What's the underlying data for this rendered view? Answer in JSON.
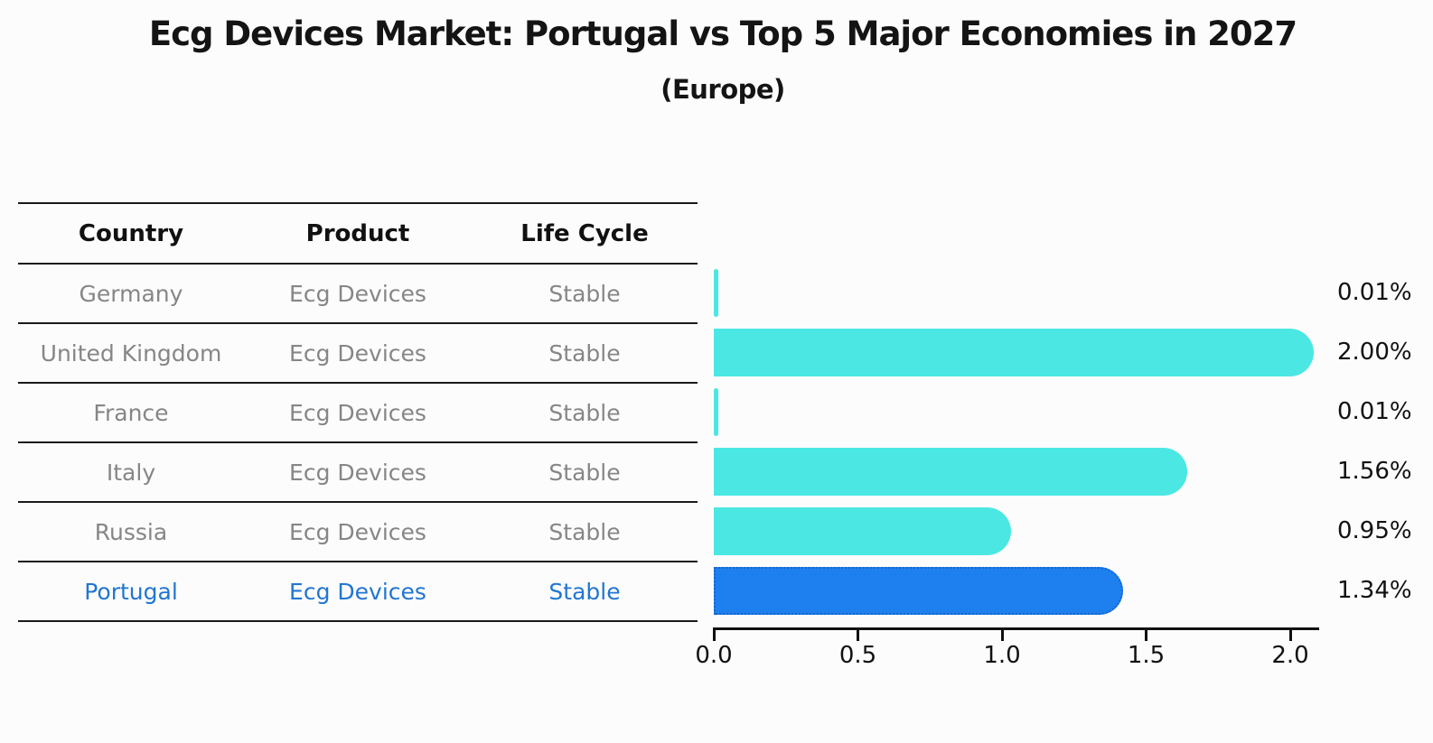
{
  "header": {
    "title": "Ecg Devices Market: Portugal vs Top 5 Major Economies in 2027",
    "subtitle": "(Europe)"
  },
  "table": {
    "columns": [
      "Country",
      "Product",
      "Life Cycle"
    ],
    "rows": [
      {
        "country": "Germany",
        "product": "Ecg Devices",
        "life_cycle": "Stable",
        "highlighted": false
      },
      {
        "country": "United Kingdom",
        "product": "Ecg Devices",
        "life_cycle": "Stable",
        "highlighted": false
      },
      {
        "country": "France",
        "product": "Ecg Devices",
        "life_cycle": "Stable",
        "highlighted": false
      },
      {
        "country": "Italy",
        "product": "Ecg Devices",
        "life_cycle": "Stable",
        "highlighted": false
      },
      {
        "country": "Russia",
        "product": "Ecg Devices",
        "life_cycle": "Stable",
        "highlighted": false
      },
      {
        "country": "Portugal",
        "product": "Ecg Devices",
        "life_cycle": "Stable",
        "highlighted": true
      }
    ]
  },
  "chart_data": {
    "type": "bar",
    "orientation": "horizontal",
    "title": "Ecg Devices Market: Portugal vs Top 5 Major Economies in 2027",
    "subtitle": "(Europe)",
    "categories": [
      "Germany",
      "United Kingdom",
      "France",
      "Italy",
      "Russia",
      "Portugal"
    ],
    "values": [
      0.01,
      2.0,
      0.01,
      1.56,
      0.95,
      1.34
    ],
    "labels": [
      "0.01%",
      "2.00%",
      "0.01%",
      "1.56%",
      "0.95%",
      "1.34%"
    ],
    "x_ticks": [
      "0.0",
      "0.5",
      "1.0",
      "1.5",
      "2.0"
    ],
    "x_tick_values": [
      0.0,
      0.5,
      1.0,
      1.5,
      2.0
    ],
    "xlim": [
      0.0,
      2.1
    ],
    "xlabel": "",
    "ylabel": "",
    "grid": false,
    "legend": false,
    "highlight_index": 5,
    "bar_color": "#4BE7E3",
    "highlight_color": "#1E80EE",
    "highlight_border_color": "#1566CC"
  },
  "colors": {
    "background": "#FCFCFC",
    "axis": "#111111",
    "text_muted": "#868686",
    "text_highlight": "#2176D2",
    "text_main": "#141414"
  }
}
